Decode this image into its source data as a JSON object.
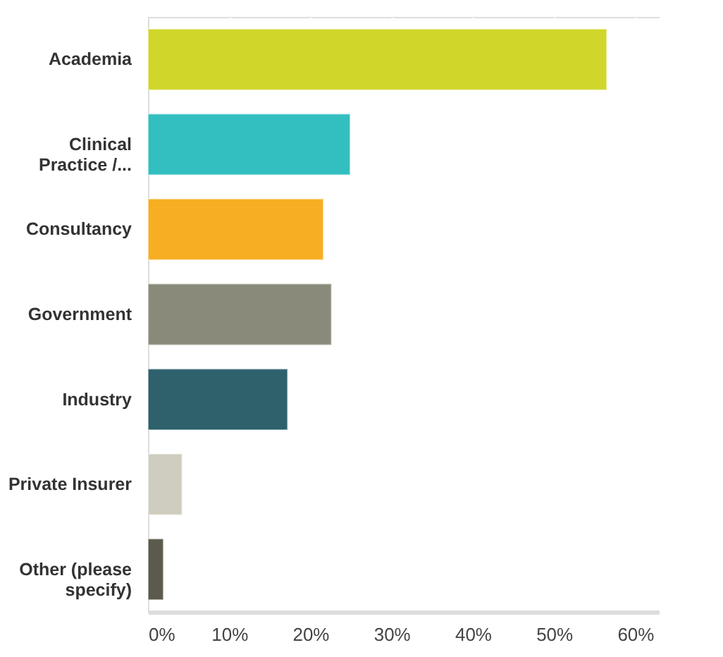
{
  "chart_data": {
    "type": "bar",
    "orientation": "horizontal",
    "categories": [
      "Academia",
      "Clinical Practice /...",
      "Consultancy",
      "Government",
      "Industry",
      "Private Insurer",
      "Other (please specify)"
    ],
    "values": [
      56.5,
      24.9,
      21.6,
      22.6,
      17.2,
      4.2,
      1.9
    ],
    "colors": [
      "#d0d62a",
      "#33bec0",
      "#f7ae22",
      "#8a8a7a",
      "#2e616c",
      "#cfcdbf",
      "#5b5a4c"
    ],
    "xlim": [
      0,
      63
    ],
    "xticks": [
      {
        "value": 0,
        "label": "0%"
      },
      {
        "value": 10,
        "label": "10%"
      },
      {
        "value": 20,
        "label": "20%"
      },
      {
        "value": 30,
        "label": "30%"
      },
      {
        "value": 40,
        "label": "40%"
      },
      {
        "value": 50,
        "label": "50%"
      },
      {
        "value": 60,
        "label": "60%"
      }
    ],
    "grid": "x"
  }
}
